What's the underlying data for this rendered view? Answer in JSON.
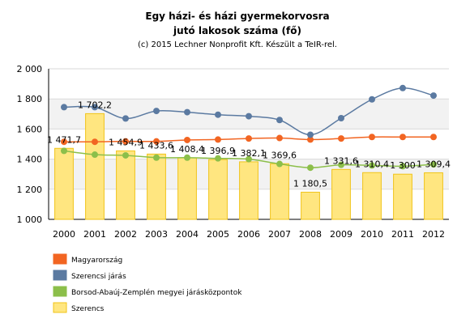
{
  "chart_data": {
    "type": "bar",
    "title_line1": "Egy házi- és házi gyermekorvosra",
    "title_line2": "jutó lakosok száma (fő)",
    "subtitle": "(c) 2015 Lechner Nonprofit Kft. Készült a TeIR-rel.",
    "categories": [
      "2000",
      "2001",
      "2002",
      "2003",
      "2004",
      "2005",
      "2006",
      "2007",
      "2008",
      "2009",
      "2010",
      "2011",
      "2012"
    ],
    "ylim": [
      1000,
      2000
    ],
    "yticks": [
      1000,
      1200,
      1400,
      1600,
      1800,
      2000
    ],
    "ytick_labels": [
      "1 000",
      "1 200",
      "1 400",
      "1 600",
      "1 800",
      "2 000"
    ],
    "grid": true,
    "legend_position": "bottom-left",
    "series": [
      {
        "name": "Magyarország",
        "kind": "line",
        "color": "#f26522",
        "values": [
          1515,
          1515,
          1518,
          1518,
          1527,
          1530,
          1537,
          1540,
          1530,
          1537,
          1547,
          1547,
          1547
        ]
      },
      {
        "name": "Szerencsi járás",
        "kind": "line",
        "color": "#5b7aa1",
        "values": [
          1745,
          1745,
          1670,
          1720,
          1712,
          1695,
          1685,
          1660,
          1562,
          1672,
          1797,
          1872,
          1822
        ]
      },
      {
        "name": "Borsod-Abaúj-Zemplén megyei járásközpontok",
        "kind": "line",
        "color": "#8cbf4a",
        "values": [
          1455,
          1430,
          1425,
          1410,
          1410,
          1405,
          1400,
          1368,
          1343,
          1362,
          1358,
          1353,
          1365
        ]
      },
      {
        "name": "Szerencs",
        "kind": "bar",
        "color": "#ffe680",
        "edge_color": "#f0c419",
        "values": [
          1471.7,
          1702.2,
          1454.9,
          1433.6,
          1408.4,
          1396.9,
          1382.1,
          1369.6,
          1180.5,
          1331.6,
          1310.4,
          1300,
          1309.4
        ],
        "data_labels": [
          "1 471,7",
          "1 702,2",
          "1 454,9",
          "1 433,6",
          "1 408,4",
          "1 396,9",
          "1 382,1",
          "1 369,6",
          "1 180,5",
          "1 331,6",
          "1 310,4",
          "1 300",
          "1 309,4"
        ]
      }
    ]
  }
}
